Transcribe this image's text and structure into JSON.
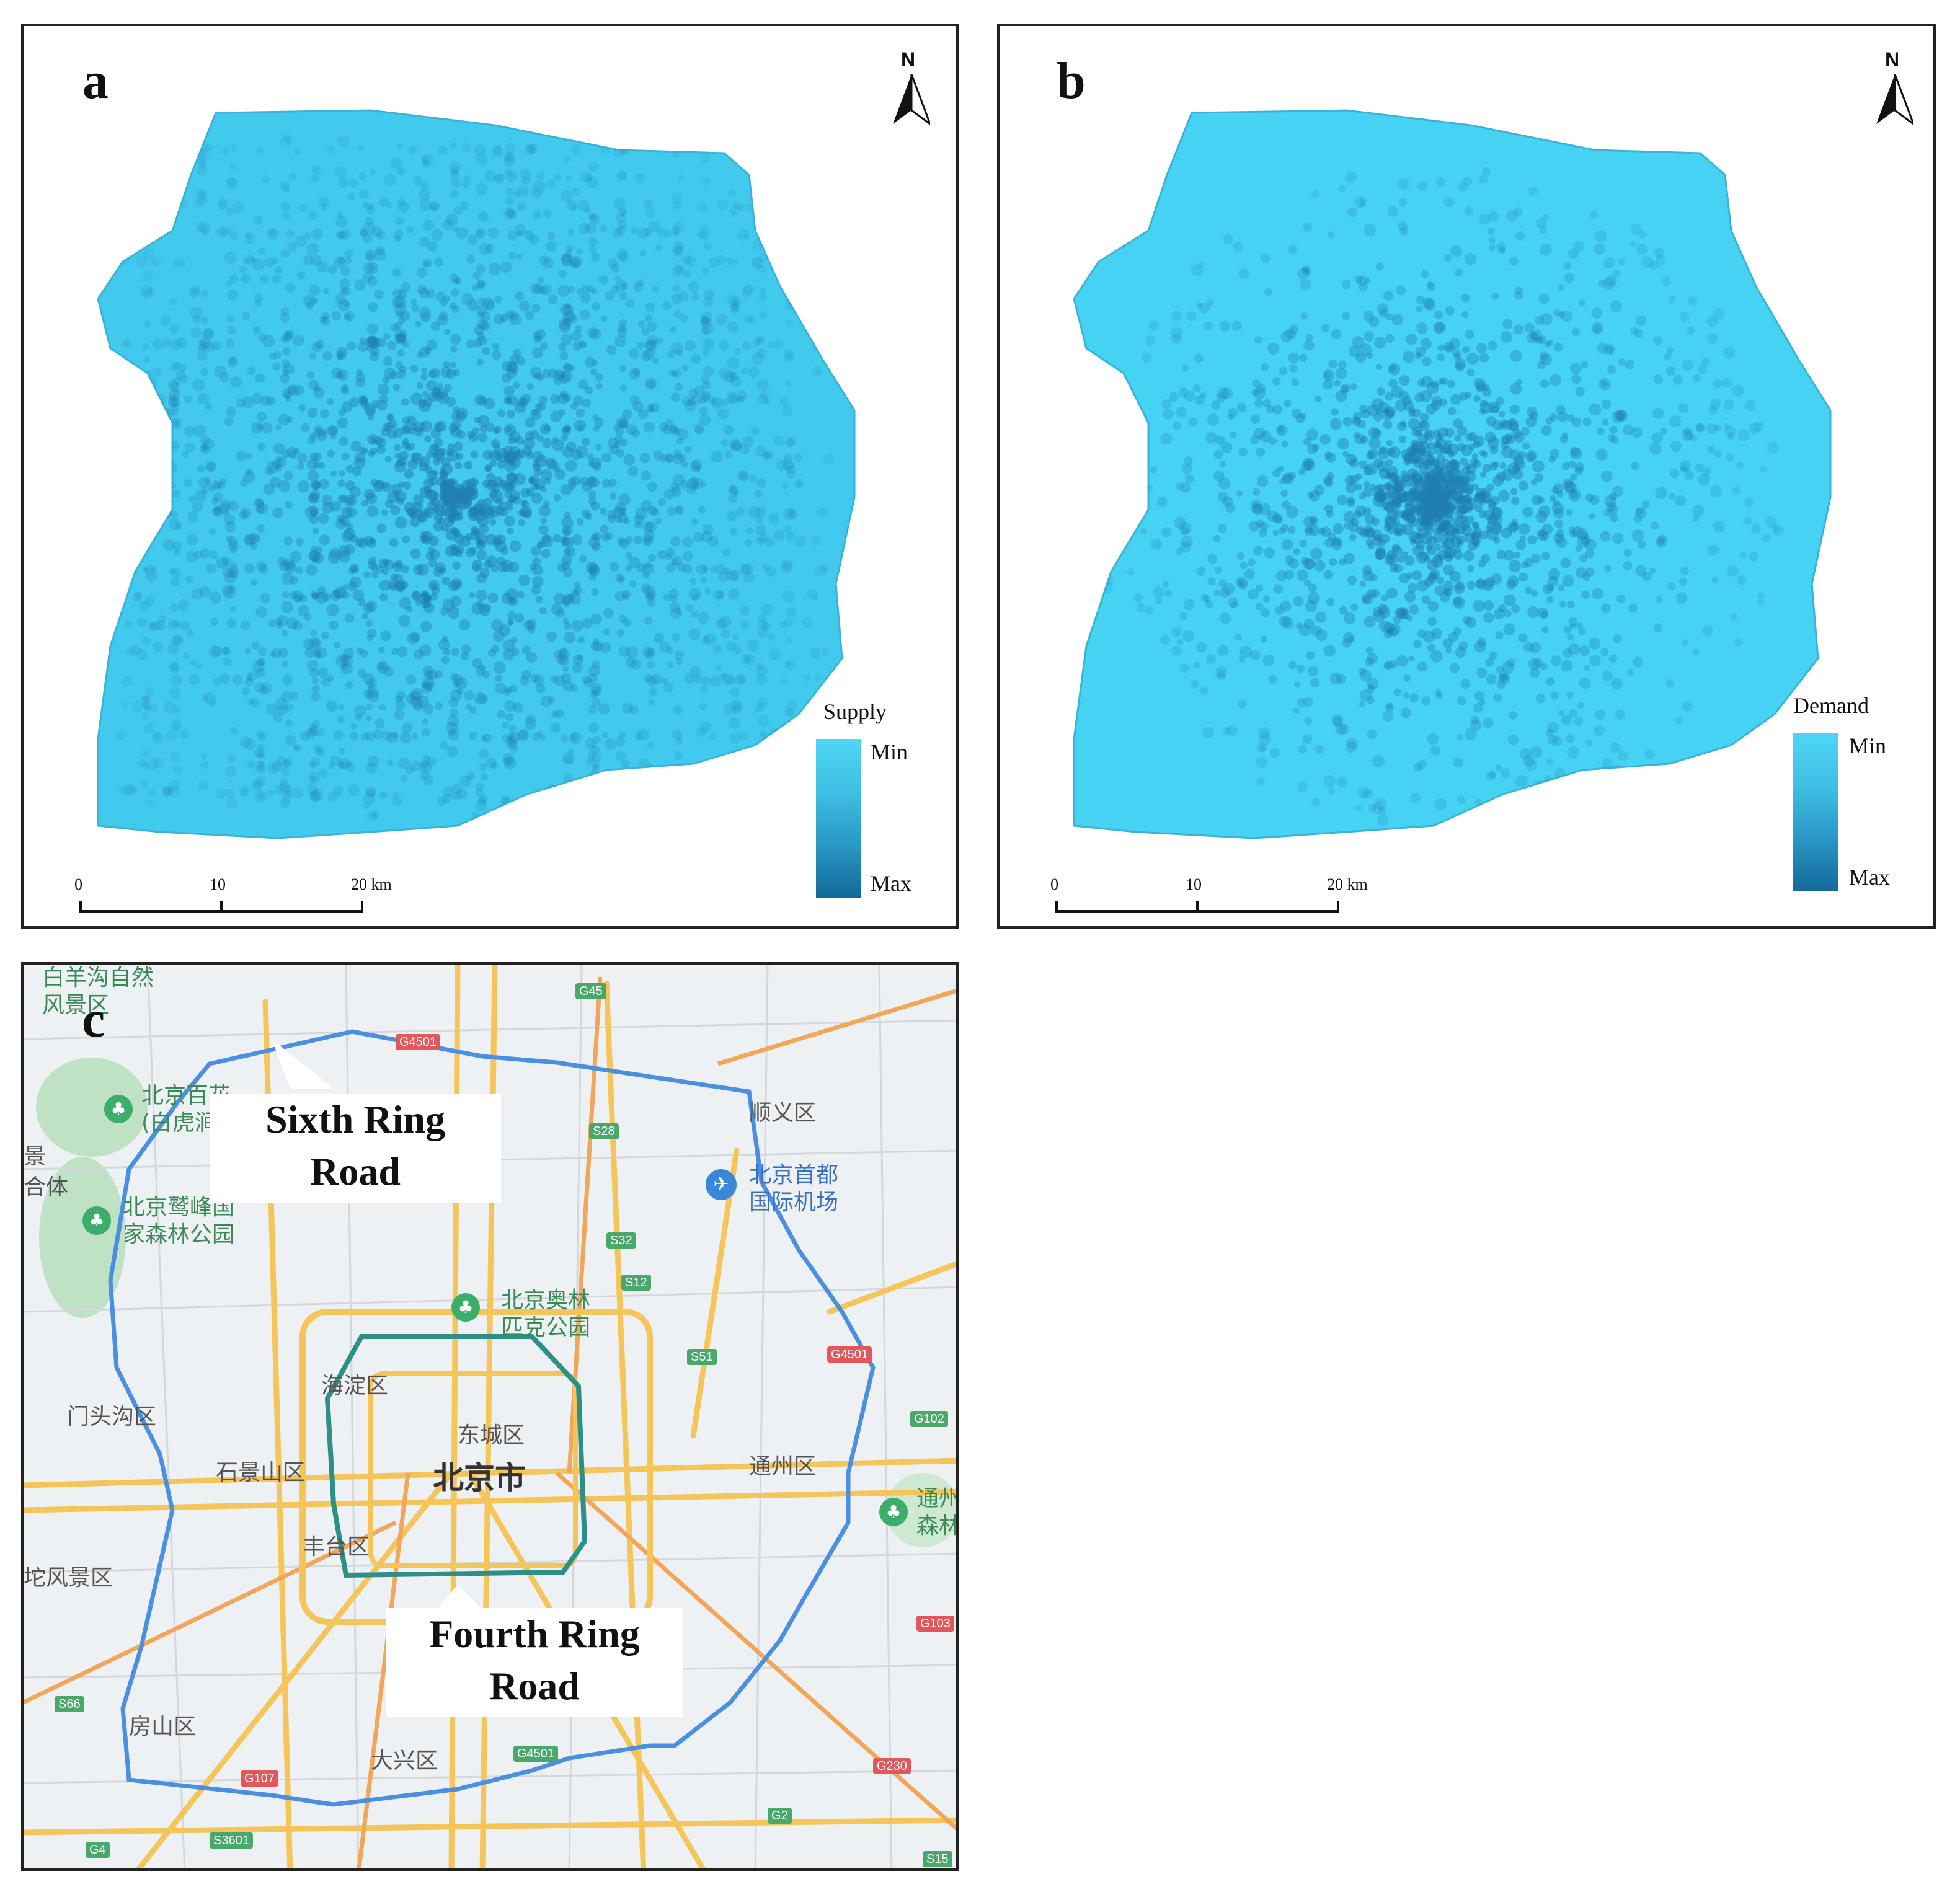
{
  "panel_a": {
    "letter": "a",
    "north": "N",
    "legend": {
      "title": "Supply",
      "min": "Min",
      "max": "Max"
    },
    "scale": {
      "ticks": [
        "0",
        "10",
        "20 km"
      ]
    }
  },
  "panel_b": {
    "letter": "b",
    "north": "N",
    "legend": {
      "title": "Demand",
      "min": "Min",
      "max": "Max"
    },
    "scale": {
      "ticks": [
        "0",
        "10",
        "20 km"
      ]
    }
  },
  "panel_c": {
    "letter": "c",
    "sixth_ring": {
      "line1": "Sixth Ring",
      "line2": "Road"
    },
    "fourth_ring": {
      "line1": "Fourth Ring",
      "line2": "Road"
    },
    "places": {
      "shunyi": "顺义区",
      "airport_1": "北京首都",
      "airport_2": "国际机场",
      "haidian": "海淀区",
      "dongcheng": "东城区",
      "beijing": "北京市",
      "tongzhou": "通州区",
      "mentougou": "门头沟区",
      "shijingshan": "石景山区",
      "fengtai": "丰台区",
      "fangshan": "房山区",
      "daxing": "大兴区",
      "olympic_1": "北京奥林",
      "olympic_2": "匹克公园",
      "baiwangshan_1": "白羊沟自然",
      "baiwangshan_2": "风景区",
      "baihu_1": "北京百花",
      "baihu_2": "(白虎涧",
      "jiufeng_1": "北京鹫峰国",
      "jiufeng_2": "家森林公园",
      "tuo": "坨风景区",
      "tongzhou_forest_1": "通州",
      "tongzhou_forest_2": "森林",
      "edge_ti": "合体",
      "edge_jing": "景"
    },
    "shields": {
      "g45": "G45",
      "g4501_top": "G4501",
      "s28": "S28",
      "s32": "S32",
      "s12": "S12",
      "s51": "S51",
      "g4501_right": "G4501",
      "g102": "G102",
      "g103": "G103",
      "s66": "S66",
      "g107": "G107",
      "s3601": "S3601",
      "g4": "G4",
      "g230": "G230",
      "g2": "G2",
      "s15": "S15",
      "g4501_bottom": "G4501"
    },
    "colors": {
      "sixth_ring": "#4a8fe0",
      "fourth_ring": "#2e8f86",
      "roads": "#f5c55a",
      "map_bg": "#eef1f4"
    }
  },
  "colors": {
    "heat_min": "#4fd6f6",
    "heat_max": "#13699a"
  }
}
